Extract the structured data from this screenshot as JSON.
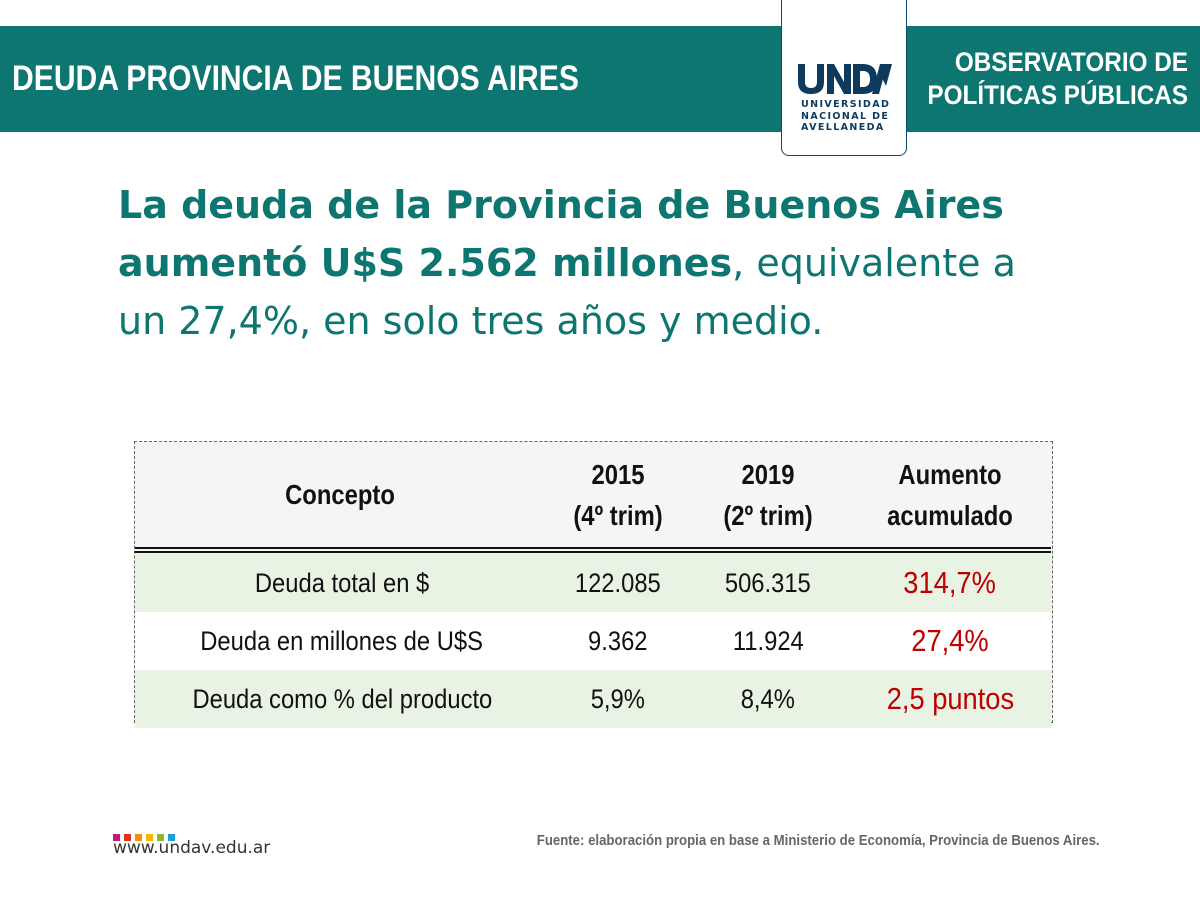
{
  "header": {
    "title": "DEUDA PROVINCIA DE BUENOS AIRES",
    "right_line1": "OBSERVATORIO DE",
    "right_line2": "POLÍTICAS PÚBLICAS",
    "bar_color": "#0e7670"
  },
  "logo": {
    "mark": "UNDAV",
    "line1": "UNIVERSIDAD",
    "line2": "NACIONAL DE",
    "line3": "AVELLANEDA",
    "color": "#0e3a5e"
  },
  "headline": {
    "line1": "La deuda de la Provincia de Buenos Aires",
    "line2_bold": "aumentó U$S 2.562 millones",
    "line2_rest": ", equivalente a",
    "line3": "un 27,4%, en solo tres años y medio."
  },
  "table": {
    "headers": {
      "concept": "Concepto",
      "col2015_year": "2015",
      "col2015_sub": "(4º trim)",
      "col2019_year": "2019",
      "col2019_sub": "(2º trim)",
      "increase_l1": "Aumento",
      "increase_l2": "acumulado"
    },
    "rows": [
      {
        "concept": "Deuda total en $",
        "v2015": "122.085",
        "v2019": "506.315",
        "increase": "314,7%"
      },
      {
        "concept": "Deuda en millones de U$S",
        "v2015": "9.362",
        "v2019": "11.924",
        "increase": "27,4%"
      },
      {
        "concept": "Deuda como % del producto",
        "v2015": "5,9%",
        "v2019": "8,4%",
        "increase": "2,5 puntos"
      }
    ],
    "increase_color": "#c00000",
    "shade_color": "#e9f3e4"
  },
  "footer": {
    "website": "www.undav.edu.ar",
    "source": "Fuente: elaboración propia en base a Ministerio de Economía, Provincia de Buenos Aires.",
    "dot_colors": [
      "#c2187a",
      "#e0301e",
      "#f39200",
      "#f7b500",
      "#8bb92d",
      "#1d9dd9"
    ]
  }
}
